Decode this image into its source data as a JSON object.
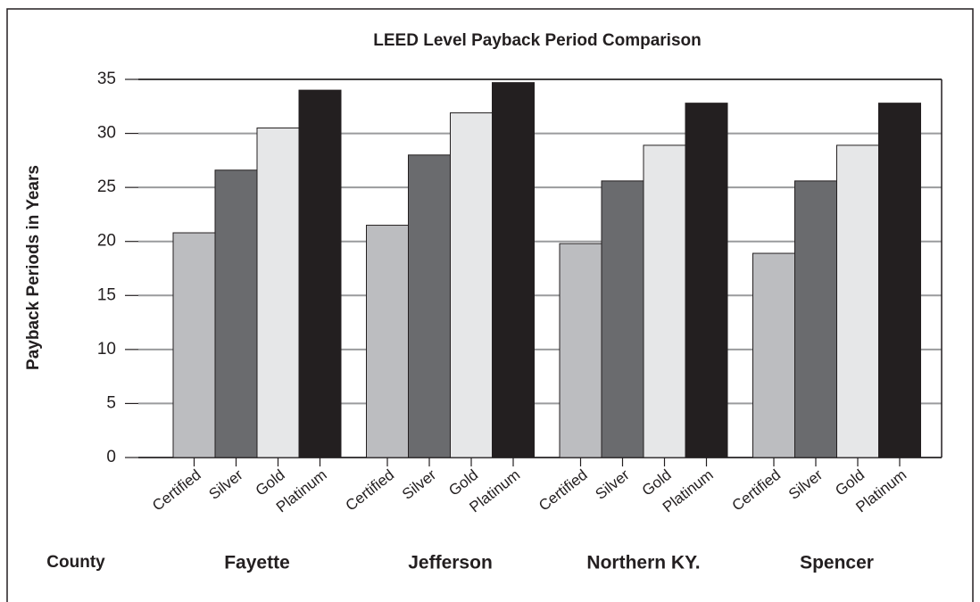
{
  "chart_data": {
    "type": "bar",
    "title": "LEED Level Payback Period Comparison",
    "ylabel": "Payback Periods in Years",
    "xlabel": "County",
    "categories": [
      "Fayette",
      "Jefferson",
      "Northern KY.",
      "Spencer"
    ],
    "series": [
      {
        "name": "Certified",
        "color": "#bcbdc0",
        "values": [
          20.8,
          21.5,
          19.8,
          18.9
        ]
      },
      {
        "name": "Silver",
        "color": "#6a6b6e",
        "values": [
          26.6,
          28.0,
          25.6,
          25.6
        ]
      },
      {
        "name": "Gold",
        "color": "#e6e7e8",
        "values": [
          30.5,
          31.9,
          28.9,
          28.9
        ]
      },
      {
        "name": "Platinum",
        "color": "#231f20",
        "values": [
          34.0,
          34.7,
          32.8,
          32.8
        ]
      }
    ],
    "ylim": [
      0,
      35
    ],
    "yticks": [
      0,
      5,
      10,
      15,
      20,
      25,
      30,
      35
    ],
    "grid": true
  }
}
